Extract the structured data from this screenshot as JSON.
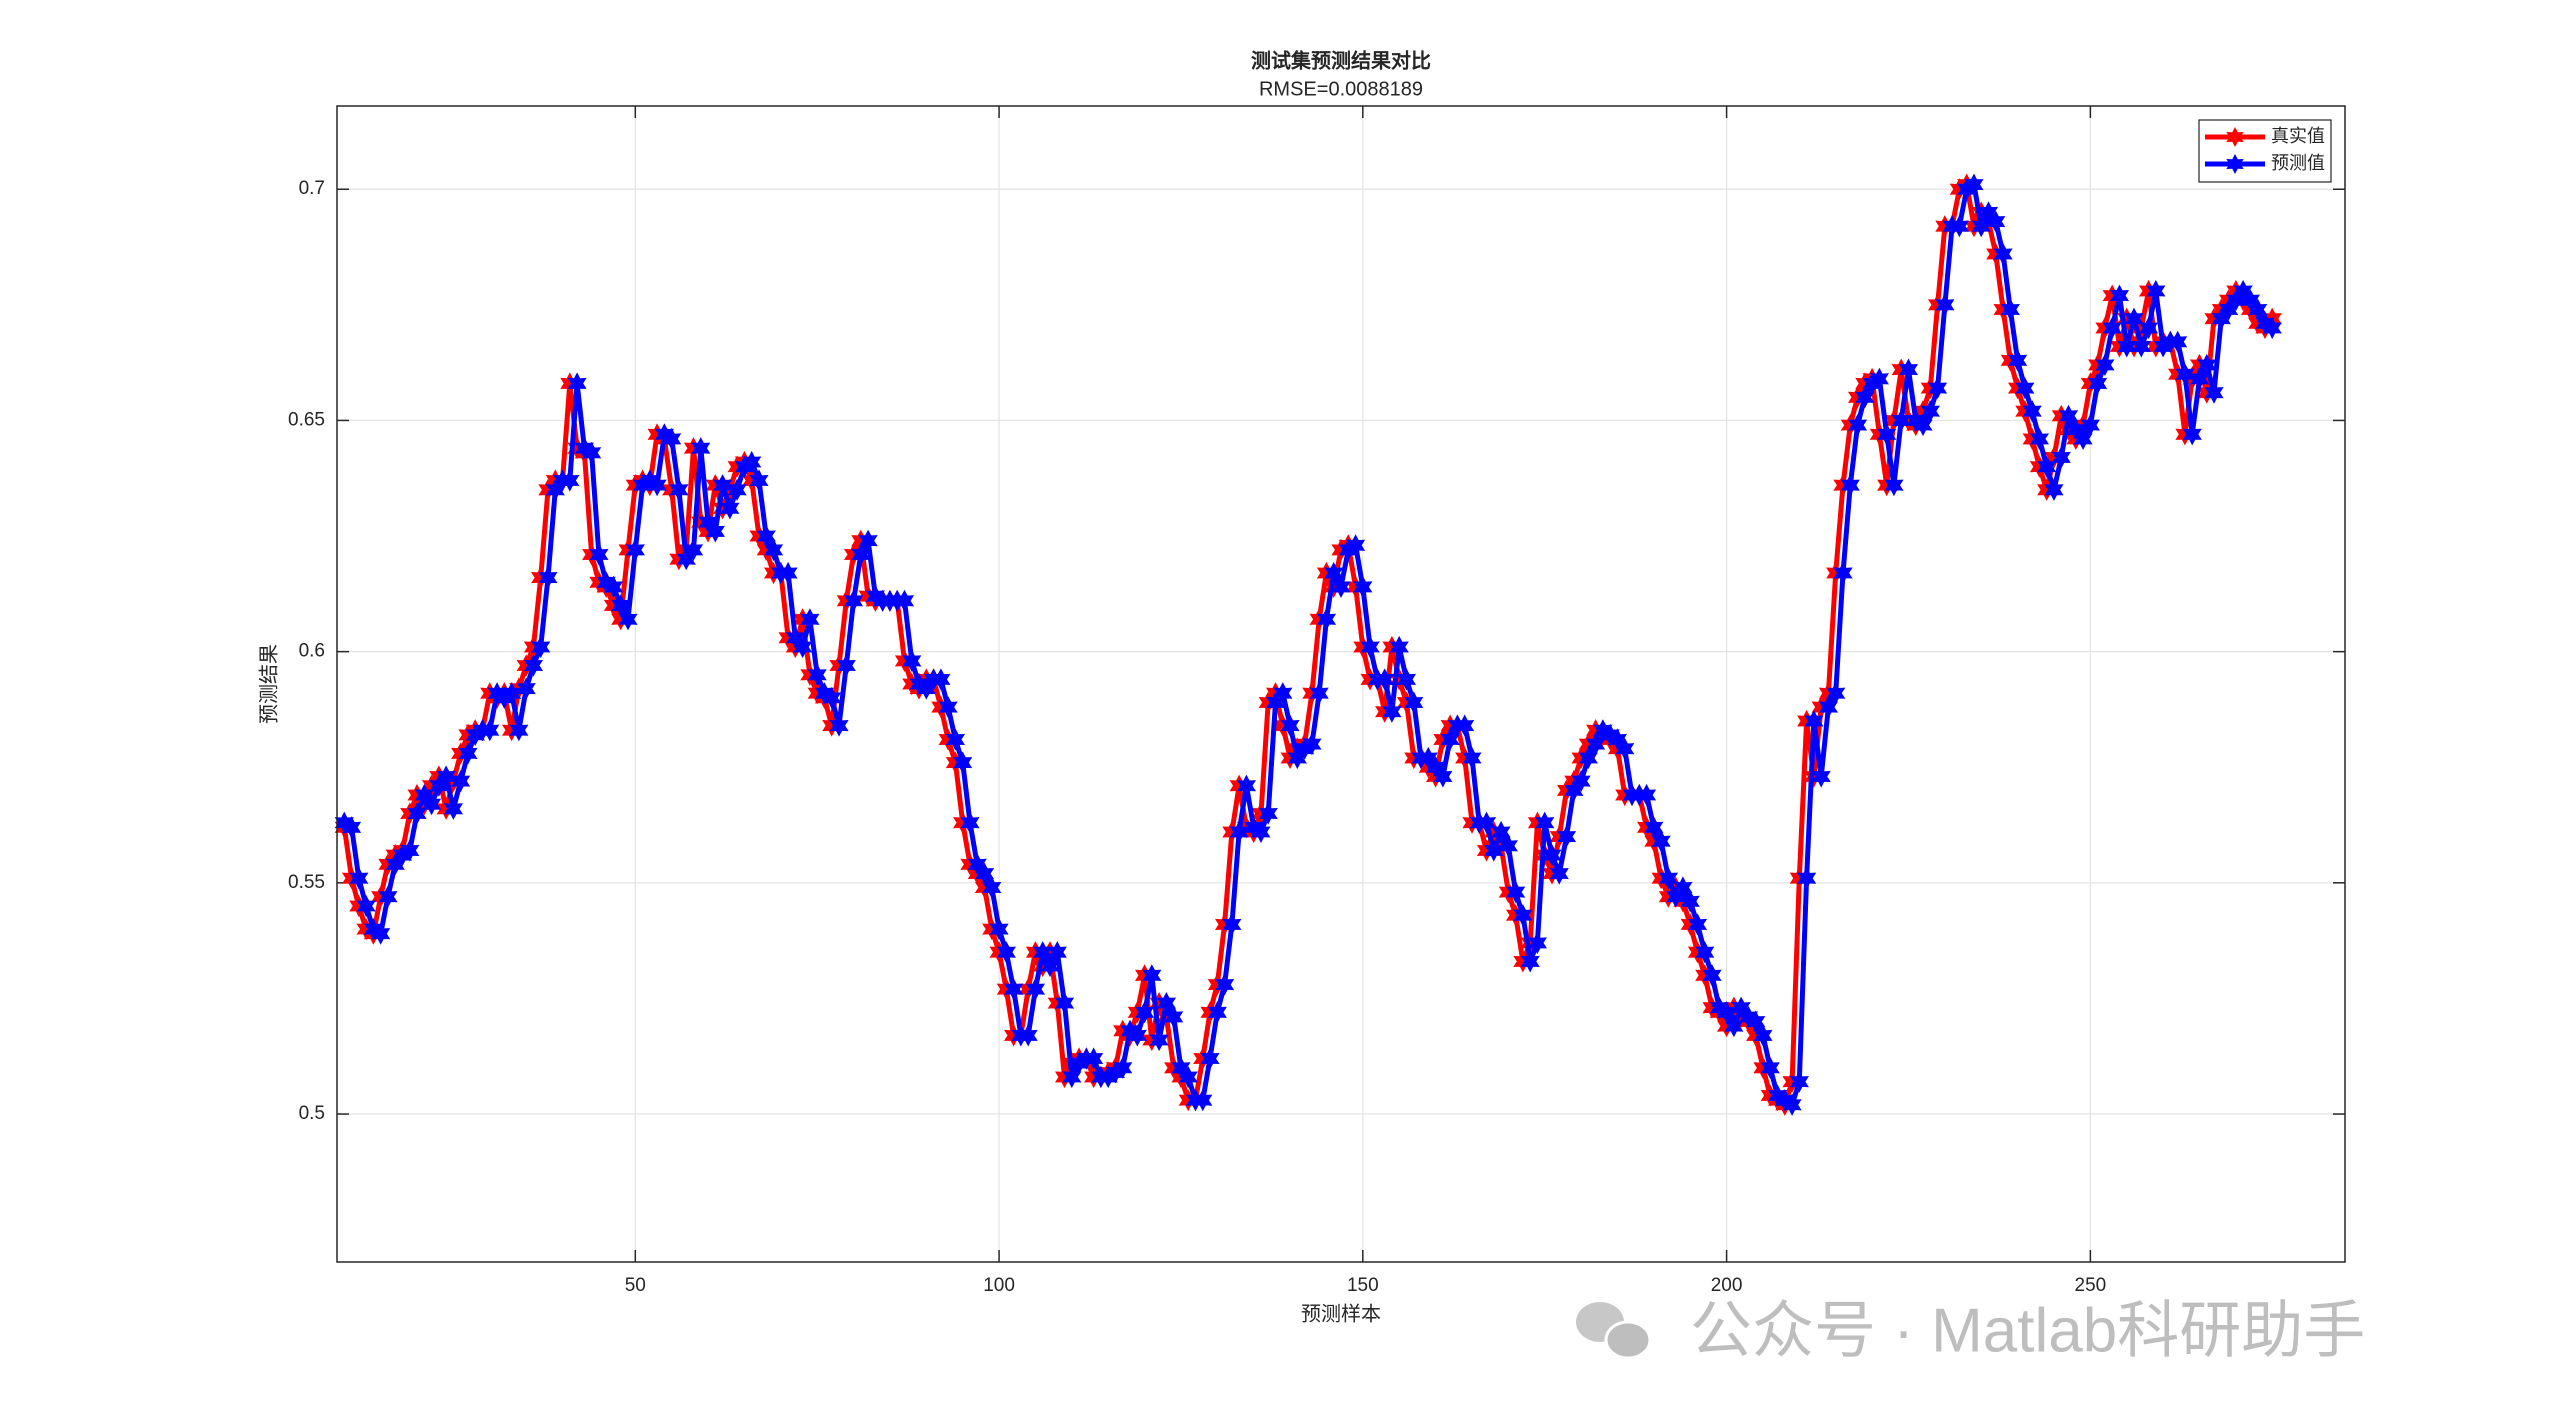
{
  "chart_data": {
    "type": "line",
    "title": "测试集预测结果对比",
    "subtitle": "RMSE=0.0088189",
    "xlabel": "预测样本",
    "ylabel": "预测结果",
    "watermark": "公众号 · Matlab科研助手",
    "xlim": [
      9,
      285
    ],
    "xticks": [
      50,
      100,
      150,
      200,
      250
    ],
    "ylim": [
      0.468,
      0.718
    ],
    "yticks": [
      0.5,
      0.55,
      0.6,
      0.65,
      0.7
    ],
    "grid": true,
    "legend": "upper right",
    "x": [
      10,
      11,
      12,
      13,
      14,
      15,
      16,
      17,
      18,
      19,
      20,
      21,
      22,
      23,
      24,
      25,
      26,
      27,
      28,
      29,
      30,
      31,
      32,
      33,
      34,
      35,
      36,
      37,
      38,
      39,
      40,
      41,
      42,
      43,
      44,
      45,
      46,
      47,
      48,
      49,
      50,
      51,
      52,
      53,
      54,
      55,
      56,
      57,
      58,
      59,
      60,
      61,
      62,
      63,
      64,
      65,
      66,
      67,
      68,
      69,
      70,
      71,
      72,
      73,
      74,
      75,
      76,
      77,
      78,
      79,
      80,
      81,
      82,
      83,
      84,
      85,
      86,
      87,
      88,
      89,
      90,
      91,
      92,
      93,
      94,
      95,
      96,
      97,
      98,
      99,
      100,
      101,
      102,
      103,
      104,
      105,
      106,
      107,
      108,
      109,
      110,
      111,
      112,
      113,
      114,
      115,
      116,
      117,
      118,
      119,
      120,
      121,
      122,
      123,
      124,
      125,
      126,
      127,
      128,
      129,
      130,
      131,
      132,
      133,
      134,
      135,
      136,
      137,
      138,
      139,
      140,
      141,
      142,
      143,
      144,
      145,
      146,
      147,
      148,
      149,
      150,
      151,
      152,
      153,
      154,
      155,
      156,
      157,
      158,
      159,
      160,
      161,
      162,
      163,
      164,
      165,
      166,
      167,
      168,
      169,
      170,
      171,
      172,
      173,
      174,
      175,
      176,
      177,
      178,
      179,
      180,
      181,
      182,
      183,
      184,
      185,
      186,
      187,
      188,
      189,
      190,
      191,
      192,
      193,
      194,
      195,
      196,
      197,
      198,
      199,
      200,
      201,
      202,
      203,
      204,
      205,
      206,
      207,
      208,
      209,
      210,
      211,
      212,
      213,
      214,
      215,
      216,
      217,
      218,
      219,
      220,
      221,
      222,
      223,
      224,
      225,
      226,
      227,
      228,
      229,
      230,
      231,
      232,
      233,
      234,
      235,
      236,
      237,
      238,
      239,
      240,
      241,
      242,
      243,
      244,
      245,
      246,
      247,
      248,
      249,
      250,
      251,
      252,
      253,
      254,
      255,
      256,
      257,
      258,
      259,
      260,
      261,
      262,
      263,
      264,
      265,
      266,
      267,
      268,
      269,
      270,
      271,
      272,
      273,
      274,
      275
    ],
    "series": [
      {
        "name": "真实值",
        "color": "#ff0000",
        "values": [
          0.562,
          0.551,
          0.545,
          0.54,
          0.539,
          0.547,
          0.554,
          0.556,
          0.557,
          0.565,
          0.569,
          0.567,
          0.571,
          0.573,
          0.566,
          0.572,
          0.578,
          0.582,
          0.583,
          0.583,
          0.591,
          0.59,
          0.591,
          0.583,
          0.592,
          0.597,
          0.601,
          0.616,
          0.635,
          0.637,
          0.637,
          0.658,
          0.644,
          0.643,
          0.621,
          0.615,
          0.614,
          0.61,
          0.607,
          0.622,
          0.636,
          0.637,
          0.636,
          0.647,
          0.646,
          0.635,
          0.62,
          0.622,
          0.644,
          0.628,
          0.626,
          0.636,
          0.631,
          0.635,
          0.64,
          0.641,
          0.637,
          0.625,
          0.622,
          0.617,
          0.617,
          0.603,
          0.601,
          0.607,
          0.595,
          0.591,
          0.59,
          0.584,
          0.597,
          0.611,
          0.621,
          0.624,
          0.612,
          0.611,
          0.611,
          0.611,
          0.611,
          0.598,
          0.593,
          0.592,
          0.594,
          0.594,
          0.588,
          0.581,
          0.576,
          0.563,
          0.554,
          0.552,
          0.549,
          0.54,
          0.535,
          0.527,
          0.517,
          0.517,
          0.527,
          0.535,
          0.532,
          0.535,
          0.524,
          0.508,
          0.511,
          0.512,
          0.512,
          0.508,
          0.508,
          0.509,
          0.51,
          0.518,
          0.517,
          0.522,
          0.53,
          0.516,
          0.524,
          0.521,
          0.51,
          0.508,
          0.503,
          0.503,
          0.512,
          0.522,
          0.528,
          0.541,
          0.561,
          0.571,
          0.562,
          0.561,
          0.565,
          0.589,
          0.591,
          0.584,
          0.577,
          0.579,
          0.58,
          0.591,
          0.607,
          0.617,
          0.614,
          0.622,
          0.623,
          0.614,
          0.601,
          0.594,
          0.594,
          0.587,
          0.601,
          0.594,
          0.589,
          0.577,
          0.577,
          0.575,
          0.573,
          0.581,
          0.584,
          0.584,
          0.577,
          0.563,
          0.563,
          0.557,
          0.561,
          0.558,
          0.548,
          0.543,
          0.533,
          0.537,
          0.563,
          0.556,
          0.552,
          0.56,
          0.57,
          0.572,
          0.577,
          0.58,
          0.583,
          0.582,
          0.581,
          0.579,
          0.569,
          0.569,
          0.569,
          0.562,
          0.559,
          0.551,
          0.547,
          0.549,
          0.546,
          0.541,
          0.535,
          0.53,
          0.523,
          0.522,
          0.519,
          0.523,
          0.521,
          0.52,
          0.517,
          0.51,
          0.504,
          0.503,
          0.502,
          0.507,
          0.551,
          0.585,
          0.573,
          0.588,
          0.591,
          0.617,
          0.636,
          0.649,
          0.655,
          0.658,
          0.659,
          0.647,
          0.636,
          0.65,
          0.661,
          0.65,
          0.649,
          0.652,
          0.657,
          0.675,
          0.692,
          0.692,
          0.7,
          0.701,
          0.692,
          0.695,
          0.693,
          0.686,
          0.674,
          0.663,
          0.657,
          0.652,
          0.646,
          0.64,
          0.635,
          0.642,
          0.651,
          0.648,
          0.646,
          0.649,
          0.658,
          0.662,
          0.67,
          0.677,
          0.666,
          0.672,
          0.666,
          0.67,
          0.678,
          0.666,
          0.667,
          0.667,
          0.66,
          0.647,
          0.659,
          0.662,
          0.656,
          0.672,
          0.674,
          0.676,
          0.678,
          0.676,
          0.674,
          0.671,
          0.67,
          0.672
        ]
      },
      {
        "name": "预测值",
        "color": "#0000ff",
        "values": [
          0.563,
          0.562,
          0.551,
          0.545,
          0.54,
          0.539,
          0.547,
          0.554,
          0.556,
          0.557,
          0.565,
          0.569,
          0.567,
          0.571,
          0.573,
          0.566,
          0.572,
          0.578,
          0.582,
          0.583,
          0.583,
          0.591,
          0.59,
          0.591,
          0.583,
          0.592,
          0.597,
          0.601,
          0.616,
          0.635,
          0.637,
          0.637,
          0.658,
          0.644,
          0.643,
          0.621,
          0.615,
          0.614,
          0.61,
          0.607,
          0.622,
          0.636,
          0.637,
          0.636,
          0.647,
          0.646,
          0.635,
          0.62,
          0.622,
          0.644,
          0.628,
          0.626,
          0.636,
          0.631,
          0.635,
          0.64,
          0.641,
          0.637,
          0.625,
          0.622,
          0.617,
          0.617,
          0.603,
          0.601,
          0.607,
          0.595,
          0.591,
          0.59,
          0.584,
          0.597,
          0.611,
          0.621,
          0.624,
          0.612,
          0.611,
          0.611,
          0.611,
          0.611,
          0.598,
          0.593,
          0.592,
          0.594,
          0.594,
          0.588,
          0.581,
          0.576,
          0.563,
          0.554,
          0.552,
          0.549,
          0.54,
          0.535,
          0.527,
          0.517,
          0.517,
          0.527,
          0.535,
          0.532,
          0.535,
          0.524,
          0.508,
          0.511,
          0.512,
          0.512,
          0.508,
          0.508,
          0.509,
          0.51,
          0.518,
          0.517,
          0.522,
          0.53,
          0.516,
          0.524,
          0.521,
          0.51,
          0.508,
          0.503,
          0.503,
          0.512,
          0.522,
          0.528,
          0.541,
          0.561,
          0.571,
          0.562,
          0.561,
          0.565,
          0.589,
          0.591,
          0.584,
          0.577,
          0.579,
          0.58,
          0.591,
          0.607,
          0.617,
          0.614,
          0.622,
          0.623,
          0.614,
          0.601,
          0.594,
          0.594,
          0.587,
          0.601,
          0.594,
          0.589,
          0.577,
          0.577,
          0.575,
          0.573,
          0.581,
          0.584,
          0.584,
          0.577,
          0.563,
          0.563,
          0.557,
          0.561,
          0.558,
          0.548,
          0.543,
          0.533,
          0.537,
          0.563,
          0.556,
          0.552,
          0.56,
          0.57,
          0.572,
          0.577,
          0.58,
          0.583,
          0.582,
          0.581,
          0.579,
          0.569,
          0.569,
          0.569,
          0.562,
          0.559,
          0.551,
          0.547,
          0.549,
          0.546,
          0.541,
          0.535,
          0.53,
          0.523,
          0.522,
          0.519,
          0.523,
          0.521,
          0.52,
          0.517,
          0.51,
          0.504,
          0.503,
          0.502,
          0.507,
          0.551,
          0.585,
          0.573,
          0.588,
          0.591,
          0.617,
          0.636,
          0.649,
          0.655,
          0.658,
          0.659,
          0.647,
          0.636,
          0.65,
          0.661,
          0.65,
          0.649,
          0.652,
          0.657,
          0.675,
          0.692,
          0.692,
          0.7,
          0.701,
          0.692,
          0.695,
          0.693,
          0.686,
          0.674,
          0.663,
          0.657,
          0.652,
          0.646,
          0.64,
          0.635,
          0.642,
          0.651,
          0.648,
          0.646,
          0.649,
          0.658,
          0.662,
          0.67,
          0.677,
          0.666,
          0.672,
          0.666,
          0.67,
          0.678,
          0.666,
          0.667,
          0.667,
          0.66,
          0.647,
          0.659,
          0.662,
          0.656,
          0.672,
          0.674,
          0.676,
          0.678,
          0.676,
          0.674,
          0.671,
          0.67
        ]
      }
    ]
  }
}
